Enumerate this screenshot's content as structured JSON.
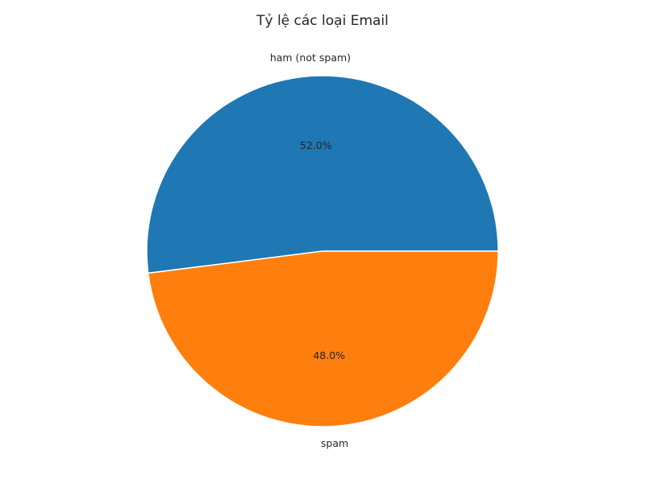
{
  "chart_data": {
    "type": "pie",
    "title": "Tỷ lệ các loại Email",
    "categories": [
      "ham (not spam)",
      "spam"
    ],
    "values": [
      52.0,
      48.0
    ],
    "percent_labels": [
      "52.0%",
      "48.0%"
    ],
    "colors": [
      "#1f77b4",
      "#ff7f0e"
    ],
    "start_angle_deg": 0,
    "direction": "counterclockwise",
    "legend": "none"
  }
}
